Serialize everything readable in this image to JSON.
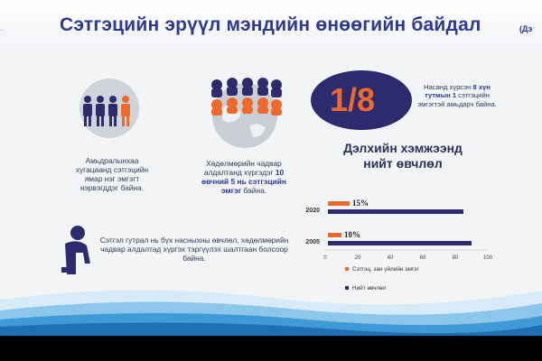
{
  "header": {
    "logo_text": "...",
    "title": "Сэтгэцийн эрүүл мэндийн өнөөгийн байдал",
    "title_tail": "(Дэ"
  },
  "blocks": {
    "life_text": "Амьдралынхаа хугацаанд сэтгэцийн ямар нэг эмгэгт нэрвэгддэг байна.",
    "work_text_pre": "Хөдөлмөрийн чадвар алдалтанд хүргэдэг ",
    "work_text_bold": "10 өвчний 5 нь сэтгэцийн эмгэг",
    "work_text_post": " байна.",
    "fraction": "1/8",
    "fraction_text_pre": "Насанд хүрсэн ",
    "fraction_text_bold": "8 хүн тутмын 1",
    "fraction_text_post": " сэтгэцийн эмгэгтэй амьдарч байна.",
    "depression_text": "Сэтгэл гутрал нь бүх насныхны өвчлөл, хөдөлмөрийн чадвар алдалтад хүргэх тэргүүлэх шалтгаан болсоор байна."
  },
  "chart_data": {
    "type": "bar",
    "orientation": "horizontal",
    "title": "Дэлхийн хэмжээнд нийт өвчлөл",
    "categories": [
      "2020",
      "2005"
    ],
    "series": [
      {
        "name": "Сэтгэц, зан үйлийн эмгэг",
        "values": [
          15,
          10
        ],
        "color": "#ef6a2a",
        "labels": [
          "15%",
          "10%"
        ]
      },
      {
        "name": "Нийт өвчлөл",
        "values": [
          85,
          90
        ],
        "color": "#2d2b6e"
      }
    ],
    "xticks": [
      "0",
      "20",
      "40",
      "60",
      "80",
      "100"
    ],
    "xlim": [
      0,
      100
    ]
  },
  "colors": {
    "orange": "#ef6a2a",
    "navy": "#2d2b6e",
    "title": "#2e3a92"
  }
}
